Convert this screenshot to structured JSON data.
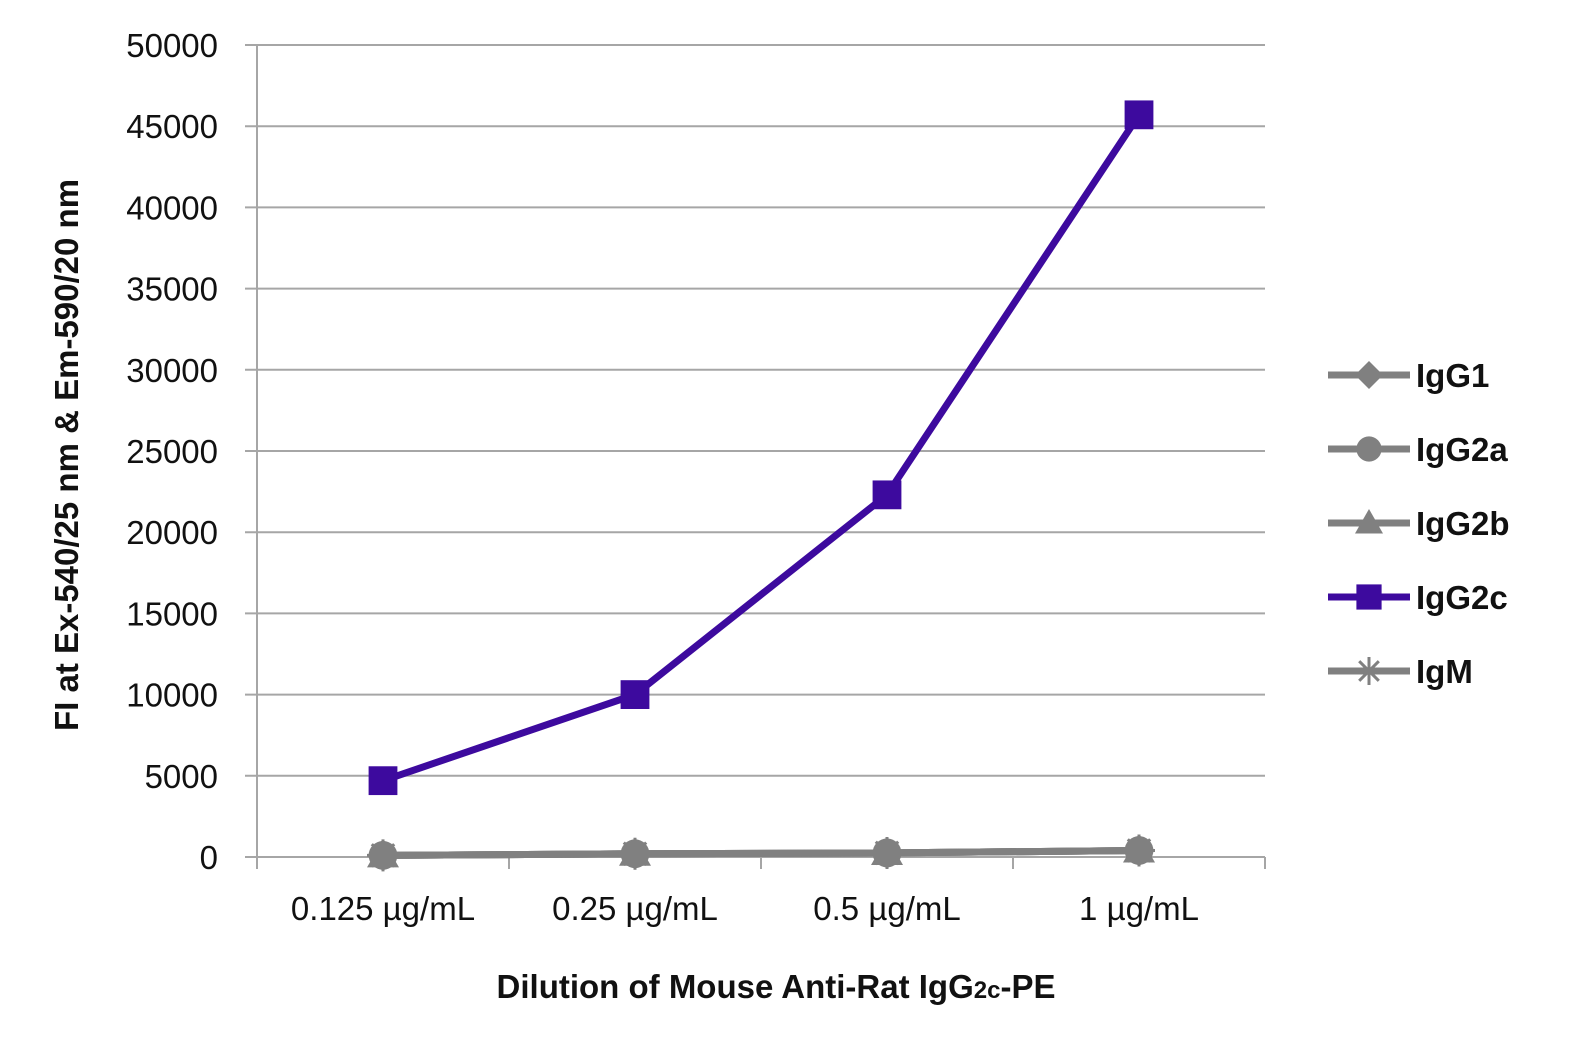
{
  "chart_data": {
    "type": "line",
    "categories": [
      "0.125 µg/mL",
      "0.25 µg/mL",
      "0.5 µg/mL",
      "1 µg/mL"
    ],
    "series": [
      {
        "name": "IgG1",
        "values": [
          100,
          200,
          250,
          400
        ],
        "color": "#808080",
        "marker": "diamond"
      },
      {
        "name": "IgG2a",
        "values": [
          100,
          200,
          250,
          400
        ],
        "color": "#808080",
        "marker": "circle"
      },
      {
        "name": "IgG2b",
        "values": [
          100,
          200,
          250,
          400
        ],
        "color": "#808080",
        "marker": "triangle"
      },
      {
        "name": "IgG2c",
        "values": [
          4700,
          10000,
          22300,
          45700
        ],
        "color": "#3d0a9e",
        "marker": "square"
      },
      {
        "name": "IgM",
        "values": [
          100,
          200,
          250,
          400
        ],
        "color": "#808080",
        "marker": "asterisk"
      }
    ],
    "title": "",
    "xlabel": "Dilution of Mouse Anti-Rat IgG2c-PE",
    "xlabel_parts": {
      "main": "Dilution of Mouse Anti-Rat IgG",
      "sub": "2c",
      "suffix": "-PE"
    },
    "ylabel": "FI at Ex-540/25 nm & Em-590/20 nm",
    "ylim": [
      0,
      50000
    ],
    "yticks": [
      0,
      5000,
      10000,
      15000,
      20000,
      25000,
      30000,
      35000,
      40000,
      45000,
      50000
    ],
    "grid": "horizontal",
    "legend_position": "right",
    "gridline_color": "#a6a6a6"
  }
}
